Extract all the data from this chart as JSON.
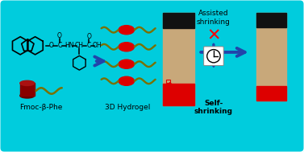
{
  "bg_color": "#00CCDD",
  "text_fmoc": "Fmoc-β-Phe",
  "text_hydrogel": "3D Hydrogel",
  "text_assisted": "Assisted\nshrinking",
  "text_self": "Self-\nshrinking",
  "tan_color": "#C8A87A",
  "dark_color": "#111111",
  "red_color": "#DD0000",
  "dark_red": "#880000",
  "olive_color": "#7A7000",
  "blue_arrow": "#2244AA",
  "white": "#FFFFFF",
  "figsize": [
    3.77,
    1.89
  ],
  "dpi": 100
}
